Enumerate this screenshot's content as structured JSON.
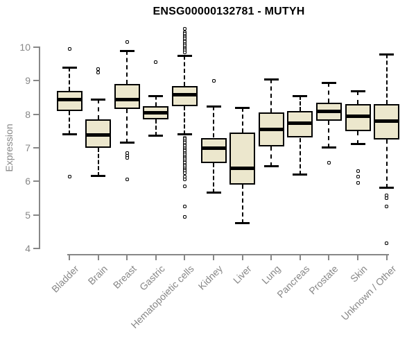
{
  "colors": {
    "background": "#FFFFFF",
    "box_fill": "#ECE7CD",
    "box_stroke": "#000000",
    "axis": "#878787",
    "label_text": "#878787",
    "title_text": "#000000"
  },
  "chart_data": {
    "type": "boxplot",
    "title": "ENSG00000132781 - MUTYH",
    "xlabel": "",
    "ylabel": "Expression",
    "ylim": [
      4,
      10.6
    ],
    "y_ticks": [
      4,
      5,
      6,
      7,
      8,
      9,
      10
    ],
    "grid": false,
    "legend": "none",
    "categories": [
      "Bladder",
      "Brain",
      "Breast",
      "Gastric",
      "Hematopoietic cells",
      "Kidney",
      "Liver",
      "Lung",
      "Pancreas",
      "Prostate",
      "Skin",
      "Unknown / Other"
    ],
    "series": [
      {
        "name": "Bladder",
        "whisker_low": 7.4,
        "q1": 8.1,
        "median": 8.45,
        "q3": 8.7,
        "whisker_high": 9.4,
        "outliers": [
          9.95,
          6.15
        ]
      },
      {
        "name": "Brain",
        "whisker_low": 6.15,
        "q1": 7.0,
        "median": 7.4,
        "q3": 7.85,
        "whisker_high": 8.45,
        "outliers": [
          9.35,
          9.25
        ]
      },
      {
        "name": "Breast",
        "whisker_low": 7.15,
        "q1": 8.15,
        "median": 8.45,
        "q3": 8.9,
        "whisker_high": 9.9,
        "outliers": [
          10.15,
          6.85,
          6.77,
          6.7,
          6.05
        ]
      },
      {
        "name": "Gastric",
        "whisker_low": 7.35,
        "q1": 7.85,
        "median": 8.05,
        "q3": 8.25,
        "whisker_high": 8.55,
        "outliers": [
          9.55
        ]
      },
      {
        "name": "Hematopoietic cells",
        "whisker_low": 7.4,
        "q1": 8.25,
        "median": 8.6,
        "q3": 8.85,
        "whisker_high": 9.75,
        "outliers": [
          10.55,
          10.45,
          10.4,
          10.35,
          10.3,
          10.25,
          10.2,
          10.15,
          10.1,
          10.05,
          10.0,
          9.95,
          9.9,
          9.85,
          7.3,
          7.25,
          7.2,
          7.15,
          7.1,
          7.05,
          7.0,
          6.95,
          6.9,
          6.85,
          6.8,
          6.75,
          6.7,
          6.65,
          6.6,
          6.55,
          6.5,
          6.45,
          6.4,
          6.35,
          6.3,
          6.25,
          6.15,
          6.05,
          5.85,
          5.25,
          4.95
        ]
      },
      {
        "name": "Kidney",
        "whisker_low": 5.65,
        "q1": 6.55,
        "median": 7.0,
        "q3": 7.3,
        "whisker_high": 8.25,
        "outliers": [
          9.0
        ]
      },
      {
        "name": "Liver",
        "whisker_low": 4.75,
        "q1": 5.9,
        "median": 6.4,
        "q3": 7.45,
        "whisker_high": 8.2,
        "outliers": []
      },
      {
        "name": "Lung",
        "whisker_low": 6.45,
        "q1": 7.05,
        "median": 7.55,
        "q3": 8.05,
        "whisker_high": 9.05,
        "outliers": []
      },
      {
        "name": "Pancreas",
        "whisker_low": 6.2,
        "q1": 7.3,
        "median": 7.75,
        "q3": 8.1,
        "whisker_high": 8.55,
        "outliers": []
      },
      {
        "name": "Prostate",
        "whisker_low": 7.0,
        "q1": 7.8,
        "median": 8.1,
        "q3": 8.35,
        "whisker_high": 8.95,
        "outliers": [
          6.55
        ]
      },
      {
        "name": "Skin",
        "whisker_low": 7.1,
        "q1": 7.5,
        "median": 7.95,
        "q3": 8.3,
        "whisker_high": 8.7,
        "outliers": [
          6.3,
          6.15,
          5.95
        ]
      },
      {
        "name": "Unknown / Other",
        "whisker_low": 5.8,
        "q1": 7.25,
        "median": 7.8,
        "q3": 8.3,
        "whisker_high": 9.8,
        "outliers": [
          5.58,
          5.5,
          5.25,
          4.15
        ]
      }
    ]
  }
}
